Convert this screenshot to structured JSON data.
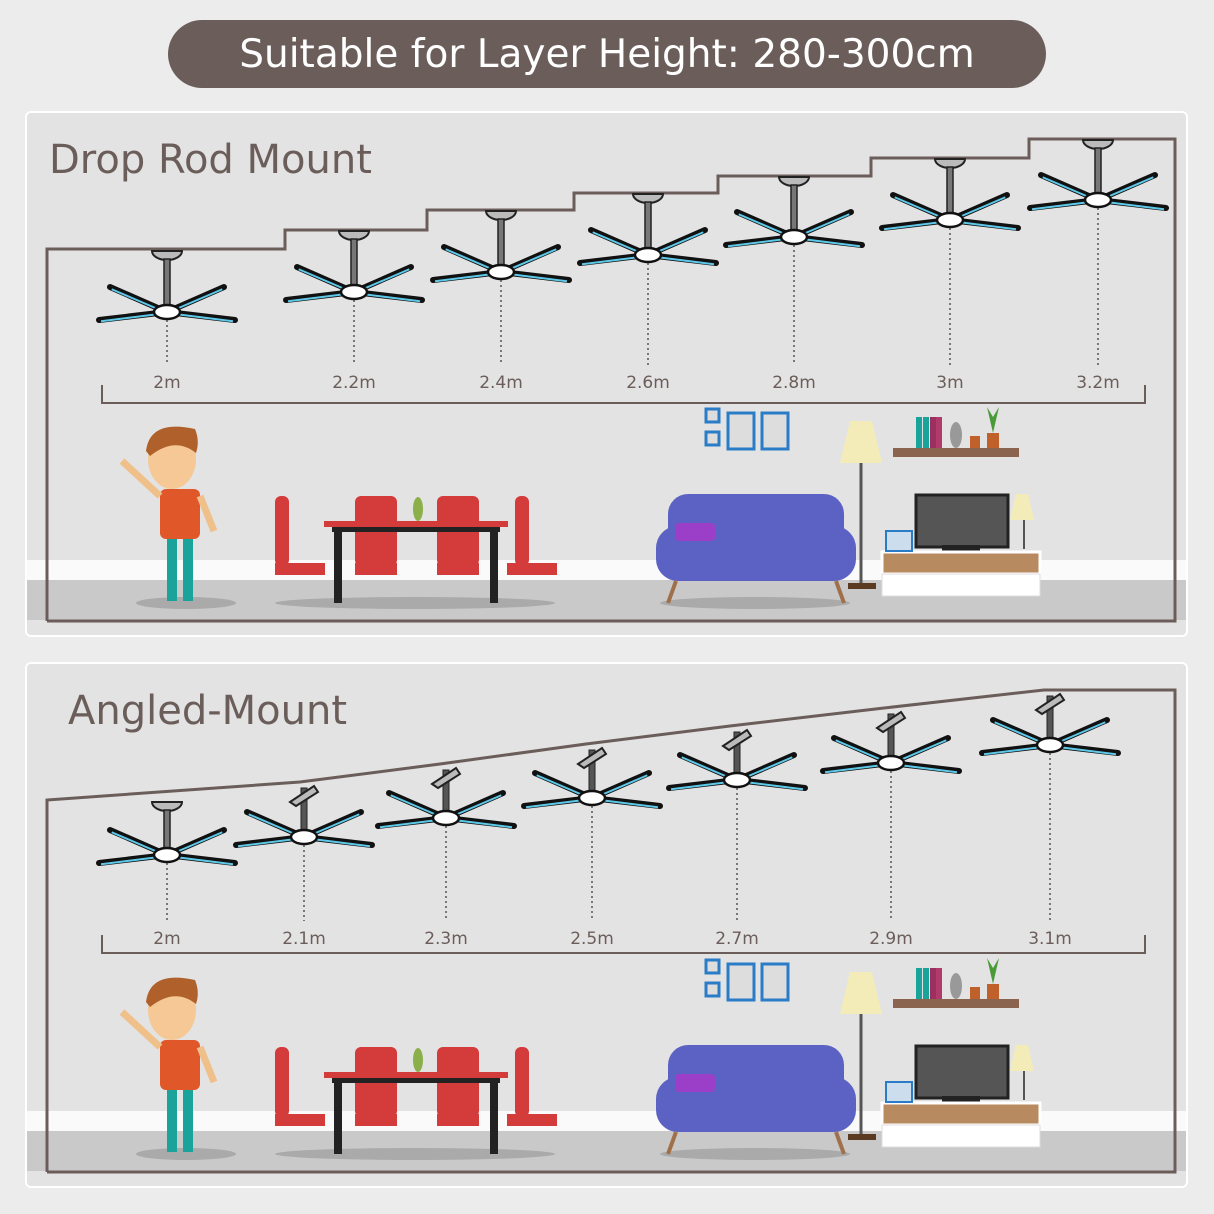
{
  "banner": {
    "text": "Suitable for Layer Height: 280-300cm"
  },
  "panels": [
    {
      "title": "Drop Rod Mount",
      "mount": "drop-rod",
      "heights": [
        "2m",
        "2.2m",
        "2.4m",
        "2.6m",
        "2.8m",
        "3m",
        "3.2m"
      ]
    },
    {
      "title": "Angled-Mount",
      "mount": "angled",
      "heights": [
        "2m",
        "2.1m",
        "2.3m",
        "2.5m",
        "2.7m",
        "2.9m",
        "3.1m"
      ]
    }
  ],
  "colors": {
    "banner": "#6b5e5a",
    "blade_accent": "#5ec8e8",
    "ceiling_line": "#6b5e5a",
    "sofa": "#5b62c4",
    "chairs": "#d43b3b"
  }
}
